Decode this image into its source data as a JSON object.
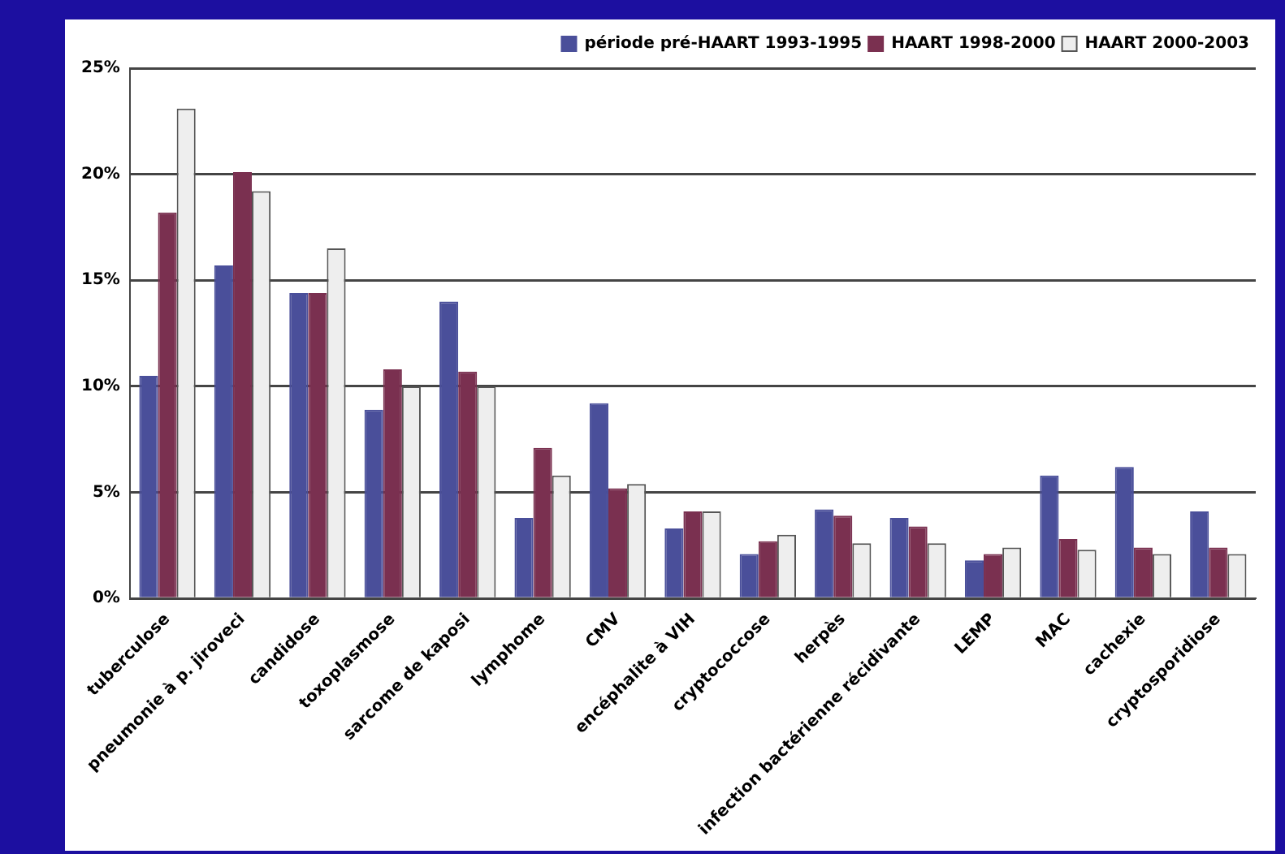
{
  "chart_data": {
    "type": "bar",
    "categories": [
      "tuberculose",
      "pneumonie à p. jiroveci",
      "candidose",
      "toxoplasmose",
      "sarcome de kaposi",
      "lymphome",
      "CMV",
      "encéphalite à VIH",
      "cryptococcose",
      "herpès",
      "infection bactérienne récidivante",
      "LEMP",
      "MAC",
      "cachexie",
      "cryptosporidiose"
    ],
    "series": [
      {
        "name": "période pré-HAART 1993-1995",
        "color": "#4a4f9a",
        "values": [
          10.5,
          15.7,
          14.4,
          8.9,
          14.0,
          3.8,
          9.2,
          3.3,
          2.1,
          4.2,
          3.8,
          1.8,
          5.8,
          6.2,
          4.1
        ]
      },
      {
        "name": "HAART 1998-2000",
        "color": "#7a3050",
        "values": [
          18.2,
          20.1,
          14.4,
          10.8,
          10.7,
          7.1,
          5.2,
          4.1,
          2.7,
          3.9,
          3.4,
          2.1,
          2.8,
          2.4,
          2.4
        ]
      },
      {
        "name": "HAART 2000-2003",
        "color": "#eeeeee",
        "values": [
          23.1,
          19.2,
          16.5,
          10.0,
          10.0,
          5.8,
          5.4,
          4.1,
          3.0,
          2.6,
          2.6,
          2.4,
          2.3,
          2.1,
          2.1
        ]
      }
    ],
    "ylim": [
      0,
      25
    ],
    "yticks": [
      {
        "value": 0,
        "label": "0%"
      },
      {
        "value": 5,
        "label": "5%"
      },
      {
        "value": 10,
        "label": "10%"
      },
      {
        "value": 15,
        "label": "15%"
      },
      {
        "value": 20,
        "label": "20%"
      },
      {
        "value": 25,
        "label": "25%"
      }
    ],
    "grid": "y",
    "legend": "top right"
  }
}
